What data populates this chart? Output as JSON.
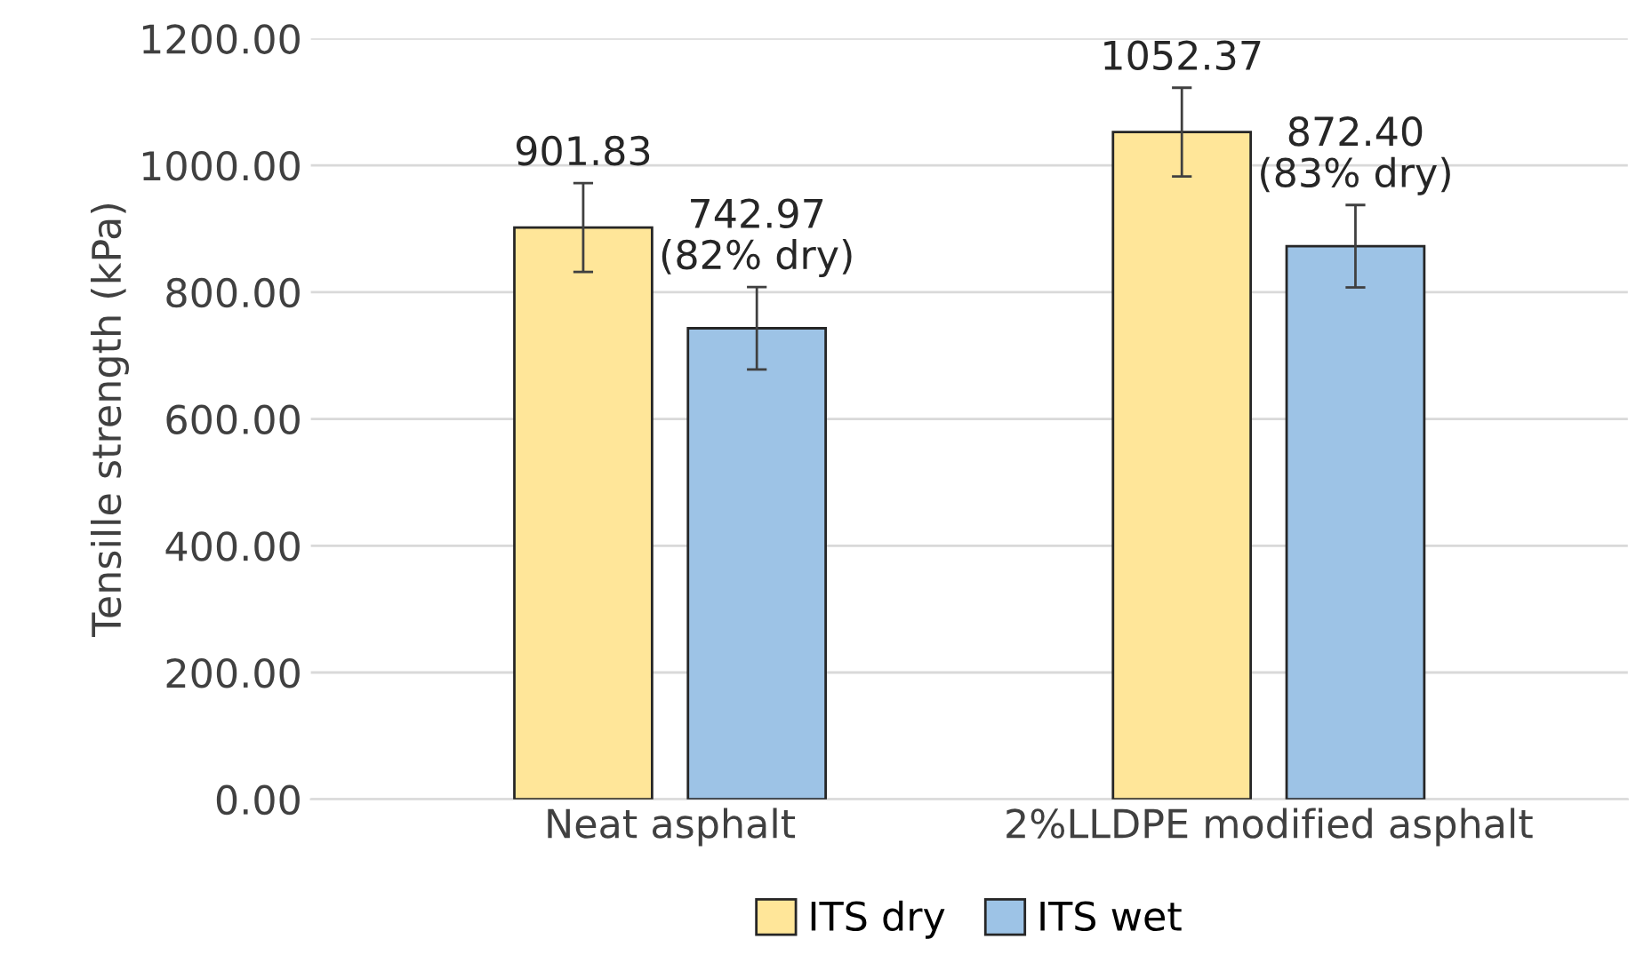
{
  "chart_data": {
    "type": "bar",
    "ylabel": "Tensille strength (kPa)",
    "categories": [
      "Neat asphalt",
      "2%LLDPE modified asphalt"
    ],
    "series": [
      {
        "name": "ITS dry",
        "color": "#ffe699",
        "values": [
          901.83,
          1052.37
        ],
        "errors": [
          70,
          70
        ],
        "value_labels": [
          "901.83",
          "1052.37"
        ]
      },
      {
        "name": "ITS wet",
        "color": "#9dc3e6",
        "values": [
          742.97,
          872.4
        ],
        "errors": [
          65,
          65
        ],
        "value_labels": [
          "742.97\n(82% dry)",
          "872.40\n(83% dry)"
        ]
      }
    ],
    "ylim": [
      0,
      1200
    ],
    "yticks": [
      {
        "value": 0,
        "label": "0.00"
      },
      {
        "value": 200,
        "label": "200.00"
      },
      {
        "value": 400,
        "label": "400.00"
      },
      {
        "value": 600,
        "label": "600.00"
      },
      {
        "value": 800,
        "label": "800.00"
      },
      {
        "value": 1000,
        "label": "1000.00"
      },
      {
        "value": 1200,
        "label": "1200.00"
      }
    ],
    "grid": "y",
    "legend": "bottom"
  }
}
